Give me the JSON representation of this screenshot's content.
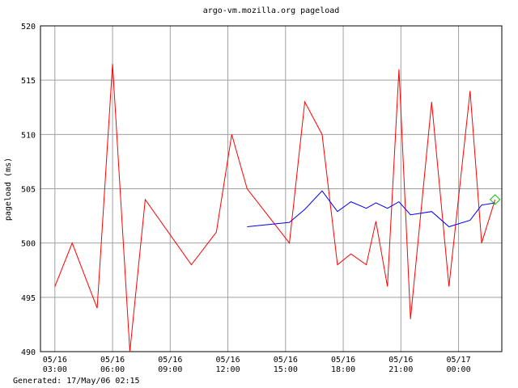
{
  "chart_data": {
    "type": "line",
    "title": "argo-vm.mozilla.org pageload",
    "y_label": "pageload (ms)",
    "footer": "Generated: 17/May/06 02:15",
    "x": [
      3,
      3.9,
      5.2,
      6,
      6.9,
      7.7,
      10.1,
      11.4,
      12.2,
      13,
      15.2,
      16,
      16.9,
      17.7,
      18.4,
      19.2,
      19.7,
      20.3,
      20.9,
      21.5,
      22.6,
      23.5,
      24.6,
      25.2,
      25.9
    ],
    "series": [
      {
        "color": "#ff0000",
        "values": [
          496,
          500,
          494,
          516.5,
          490,
          504,
          498,
          501,
          510,
          505,
          500,
          513,
          510,
          498,
          499,
          498,
          502,
          496,
          516,
          493,
          513,
          496,
          514,
          500,
          504
        ]
      },
      {
        "color": "#0000ff",
        "values": [
          null,
          null,
          null,
          null,
          null,
          null,
          null,
          null,
          null,
          501.5,
          501.9,
          503.1,
          504.8,
          502.9,
          503.8,
          503.2,
          503.7,
          503.2,
          503.8,
          502.6,
          502.9,
          501.5,
          502.1,
          503.5,
          503.7
        ]
      }
    ],
    "last_marker_color": "#00c000",
    "xlim": [
      2.25,
      26.25
    ],
    "xticks": [
      {
        "value": 3,
        "label": "05/16\n03:00"
      },
      {
        "value": 6,
        "label": "05/16\n06:00"
      },
      {
        "value": 9,
        "label": "05/16\n09:00"
      },
      {
        "value": 12,
        "label": "05/16\n12:00"
      },
      {
        "value": 15,
        "label": "05/16\n15:00"
      },
      {
        "value": 18,
        "label": "05/16\n18:00"
      },
      {
        "value": 21,
        "label": "05/16\n21:00"
      },
      {
        "value": 24,
        "label": "05/17\n00:00"
      }
    ],
    "ylim": [
      490,
      520
    ],
    "yticks": [
      490,
      495,
      500,
      505,
      510,
      515,
      520
    ],
    "grid": true
  }
}
